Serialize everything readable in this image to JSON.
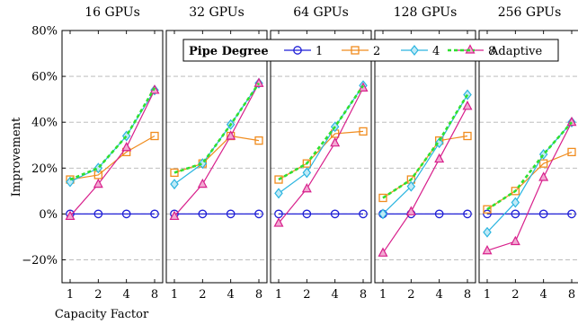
{
  "chart_data": {
    "type": "line",
    "ylabel": "Improvement",
    "xlabel": "Capacity Factor",
    "x": [
      1,
      2,
      4,
      8
    ],
    "x_tick_labels": [
      "1",
      "2",
      "4",
      "8"
    ],
    "x_scale": "log2",
    "ylim": [
      -30,
      80
    ],
    "y_ticks": [
      -20,
      0,
      20,
      40,
      60,
      80
    ],
    "y_tick_labels": [
      "−20%",
      "0%",
      "20%",
      "40%",
      "60%",
      "80%"
    ],
    "grid": "horizontal dashed",
    "legend": {
      "title": "Pipe Degree",
      "placement": "top",
      "entries": [
        "1",
        "2",
        "4",
        "8",
        "Adaptive"
      ]
    },
    "colors": {
      "1": "#1f1fd6",
      "2": "#f08c1e",
      "4": "#2cb5e0",
      "8": "#d8208c",
      "Adaptive": "#2fe02f"
    },
    "panels": [
      {
        "title": "16 GPUs",
        "series": [
          {
            "name": "1",
            "values": [
              0,
              0,
              0,
              0
            ]
          },
          {
            "name": "2",
            "values": [
              15,
              17,
              27,
              34
            ]
          },
          {
            "name": "4",
            "values": [
              14,
              20,
              34,
              54
            ]
          },
          {
            "name": "8",
            "values": [
              -1,
              13,
              29,
              54
            ]
          },
          {
            "name": "Adaptive",
            "values": [
              15,
              20,
              34,
              55
            ]
          }
        ]
      },
      {
        "title": "32 GPUs",
        "series": [
          {
            "name": "1",
            "values": [
              0,
              0,
              0,
              0
            ]
          },
          {
            "name": "2",
            "values": [
              18,
              22,
              34,
              32
            ]
          },
          {
            "name": "4",
            "values": [
              13,
              22,
              39,
              57
            ]
          },
          {
            "name": "8",
            "values": [
              -1,
              13,
              34,
              57
            ]
          },
          {
            "name": "Adaptive",
            "values": [
              18,
              22,
              39,
              57
            ]
          }
        ]
      },
      {
        "title": "64 GPUs",
        "series": [
          {
            "name": "1",
            "values": [
              0,
              0,
              0,
              0
            ]
          },
          {
            "name": "2",
            "values": [
              15,
              22,
              35,
              36
            ]
          },
          {
            "name": "4",
            "values": [
              9,
              18,
              38,
              56
            ]
          },
          {
            "name": "8",
            "values": [
              -4,
              11,
              31,
              55
            ]
          },
          {
            "name": "Adaptive",
            "values": [
              15,
              22,
              38,
              56
            ]
          }
        ]
      },
      {
        "title": "128 GPUs",
        "series": [
          {
            "name": "1",
            "values": [
              0,
              0,
              0,
              0
            ]
          },
          {
            "name": "2",
            "values": [
              7,
              15,
              32,
              34
            ]
          },
          {
            "name": "4",
            "values": [
              0,
              12,
              31,
              52
            ]
          },
          {
            "name": "8",
            "values": [
              -17,
              1,
              24,
              47
            ]
          },
          {
            "name": "Adaptive",
            "values": [
              7,
              15,
              32,
              52
            ]
          }
        ]
      },
      {
        "title": "256 GPUs",
        "series": [
          {
            "name": "1",
            "values": [
              0,
              0,
              0,
              0
            ]
          },
          {
            "name": "2",
            "values": [
              2,
              10,
              22,
              27
            ]
          },
          {
            "name": "4",
            "values": [
              -8,
              5,
              26,
              40
            ]
          },
          {
            "name": "8",
            "values": [
              -16,
              -12,
              16,
              40
            ]
          },
          {
            "name": "Adaptive",
            "values": [
              2,
              10,
              26,
              40
            ]
          }
        ]
      }
    ]
  }
}
